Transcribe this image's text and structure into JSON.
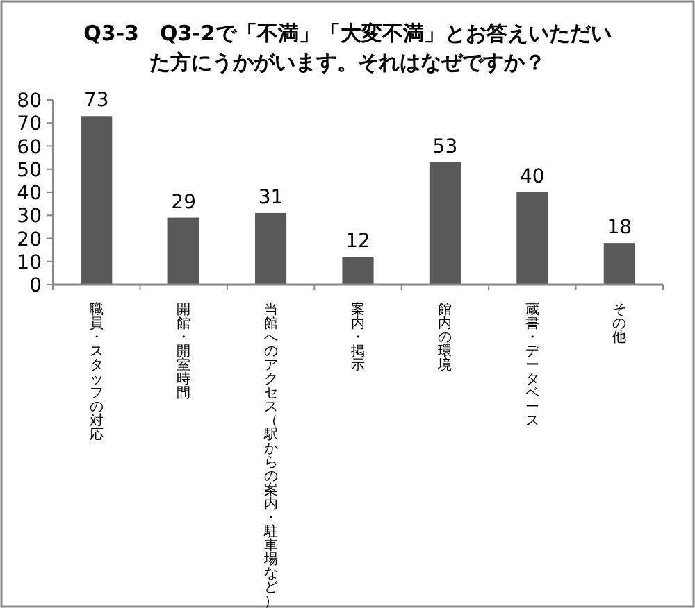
{
  "chart_data": {
    "type": "bar",
    "title": "Q3-3　Q3-2で「不満」「大変不満」とお答えいただいた方にうかがいます。それはなぜですか？",
    "categories": [
      "職員・スタッフの対応",
      "開館・開室時間",
      "当館へのアクセス（駅からの案内・駐車場など）",
      "案内・掲示",
      "館内の環境",
      "蔵書・データベース",
      "その他"
    ],
    "values": [
      73,
      29,
      31,
      12,
      53,
      40,
      18
    ],
    "color": "#595959",
    "ylim": [
      0,
      80
    ],
    "yticks": [
      0,
      10,
      20,
      30,
      40,
      50,
      60,
      70,
      80
    ],
    "data_labels": true,
    "grid": false,
    "legend": false
  }
}
